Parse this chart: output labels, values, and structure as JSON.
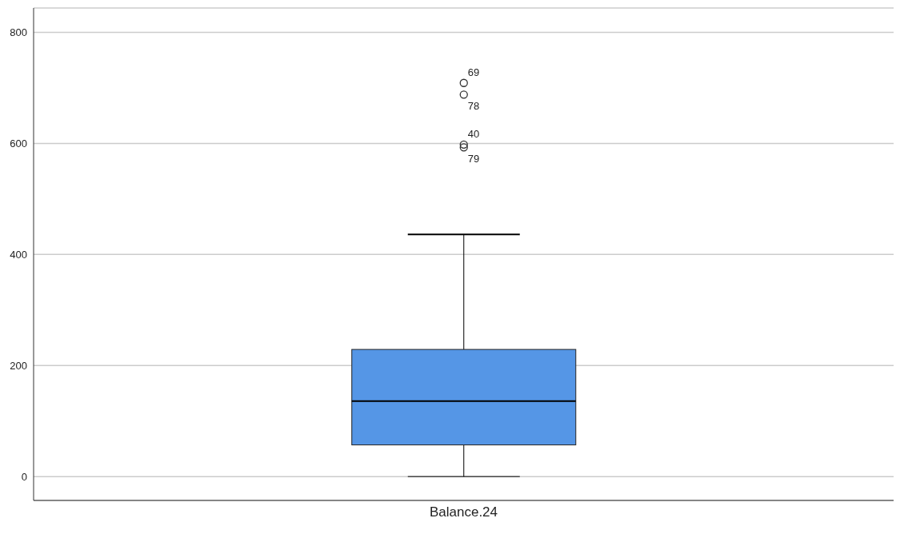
{
  "chart_data": {
    "type": "box",
    "categories": [
      "Balance.24"
    ],
    "color": "#5596e6",
    "boxes": [
      {
        "low": 0,
        "q1": 57,
        "median": 136,
        "q3": 229,
        "high": 436,
        "outliers": [
          709,
          688,
          598,
          593
        ]
      }
    ],
    "ylim": [
      -43,
      844
    ],
    "yticks": [
      0,
      200,
      400,
      600,
      800
    ],
    "grid": "y",
    "marker": "circle",
    "annotations": [
      "69",
      "78",
      "40",
      "79"
    ]
  }
}
